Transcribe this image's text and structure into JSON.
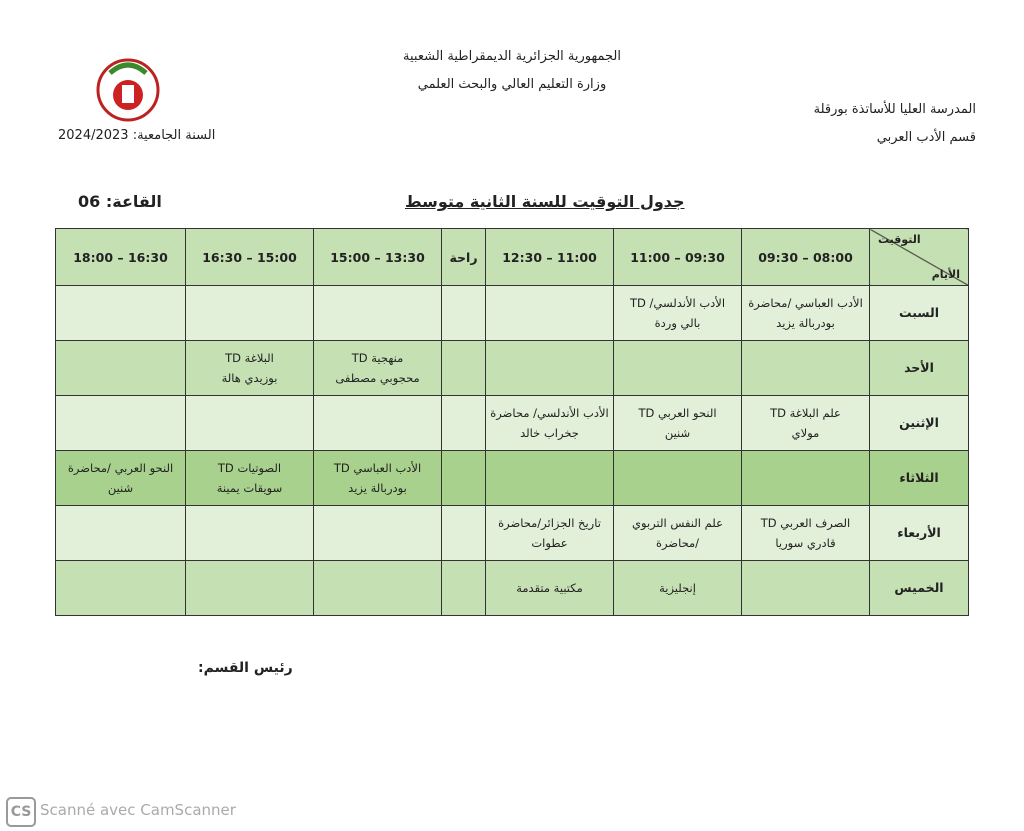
{
  "header": {
    "republic": "الجمهورية الجزائرية الديمقراطية الشعبية",
    "ministry": "وزارة التعليم العالي والبحث العلمي",
    "school": "المدرسة العليا للأساتذة بورقلة",
    "department": "قسم الأدب العربي",
    "academic_year": "السنة الجامعية: 2024/2023"
  },
  "title": "جدول التوقيت للسنة الثانية متوسط",
  "room": "القاعة: 06",
  "table": {
    "corner_top": "التوقيت",
    "corner_bottom": "الأيام",
    "columns": [
      "09:30 – 08:00",
      "11:00 – 09:30",
      "12:30 – 11:00",
      "راحة",
      "15:00 – 13:30",
      "16:30 – 15:00",
      "18:00 – 16:30"
    ],
    "rows": [
      {
        "day": "السبت",
        "cells": [
          [
            "الأدب العباسي /محاضرة",
            "بودربالة يزيد"
          ],
          [
            "الأدب الأندلسي/ TD",
            "بالي وردة"
          ],
          null,
          null,
          null,
          null,
          null
        ]
      },
      {
        "day": "الأحد",
        "cells": [
          null,
          null,
          null,
          null,
          [
            "منهجية TD",
            "محجوبي مصطفى"
          ],
          [
            "البلاغة TD",
            "بوزيدي هالة"
          ],
          null
        ]
      },
      {
        "day": "الإثنين",
        "cells": [
          [
            "علم البلاغة TD",
            "مولاي"
          ],
          [
            "النحو العربي TD",
            "شنين"
          ],
          [
            "الأدب الأندلسي/ محاضرة",
            "جخراب خالد"
          ],
          null,
          null,
          null,
          null
        ]
      },
      {
        "day": "الثلاثاء",
        "cells": [
          null,
          null,
          null,
          null,
          [
            "الأدب العباسي TD",
            "بودربالة يزيد"
          ],
          [
            "الصوتيات TD",
            "سويقات يمينة"
          ],
          [
            "النحو العربي /محاضرة",
            "شنين"
          ]
        ]
      },
      {
        "day": "الأربعاء",
        "cells": [
          [
            "الصرف العربي TD",
            "قادري سوريا"
          ],
          [
            "علم النفس التربوي",
            "/محاضرة"
          ],
          [
            "تاريخ الجزائر/محاضرة",
            "عطوات"
          ],
          null,
          null,
          null,
          null
        ]
      },
      {
        "day": "الخميس",
        "cells": [
          null,
          [
            "إنجليزية"
          ],
          [
            "مكتبية متقدمة"
          ],
          null,
          null,
          null,
          null
        ]
      }
    ]
  },
  "footer": {
    "head_of_department": "رئيس القسم:"
  },
  "watermark": {
    "logo": "CS",
    "text": "Scanné avec CamScanner"
  }
}
